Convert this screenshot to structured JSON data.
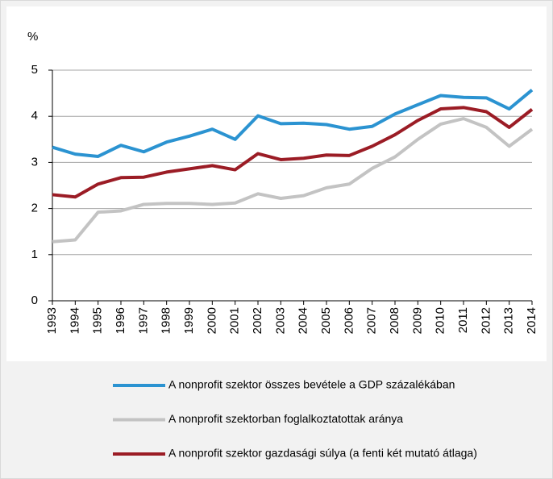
{
  "chart_data": {
    "type": "line",
    "y_label": "%",
    "categories": [
      "1993",
      "1994",
      "1995",
      "1996",
      "1997",
      "1998",
      "1999",
      "2000",
      "2001",
      "2002",
      "2003",
      "2004",
      "2005",
      "2006",
      "2007",
      "2008",
      "2009",
      "2010",
      "2011",
      "2012",
      "2013",
      "2014"
    ],
    "series": [
      {
        "name": "A nonprofit szektor összes bevétele a GDP százalékában",
        "color": "#2b93d1",
        "values": [
          3.33,
          3.18,
          3.13,
          3.37,
          3.23,
          3.44,
          3.57,
          3.72,
          3.5,
          4.01,
          3.84,
          3.85,
          3.82,
          3.72,
          3.78,
          4.05,
          4.25,
          4.45,
          4.41,
          4.4,
          4.16,
          4.57
        ]
      },
      {
        "name": "A nonprofit szektorban foglalkoztatottak aránya",
        "color": "#c3c3c3",
        "values": [
          1.28,
          1.32,
          1.92,
          1.95,
          2.09,
          2.11,
          2.11,
          2.09,
          2.12,
          2.32,
          2.22,
          2.28,
          2.45,
          2.53,
          2.87,
          3.12,
          3.5,
          3.83,
          3.95,
          3.76,
          3.35,
          3.72
        ]
      },
      {
        "name": "A nonprofit szektor gazdasági súlya (a fenti két mutató átlaga)",
        "color": "#9b1c25",
        "values": [
          2.3,
          2.25,
          2.53,
          2.67,
          2.68,
          2.79,
          2.86,
          2.93,
          2.84,
          3.19,
          3.06,
          3.09,
          3.16,
          3.15,
          3.35,
          3.6,
          3.91,
          4.16,
          4.19,
          4.1,
          3.76,
          4.15
        ]
      }
    ],
    "ylim": [
      0,
      5
    ],
    "yticks": [
      0,
      1,
      2,
      3,
      4,
      5
    ],
    "grid": true
  }
}
